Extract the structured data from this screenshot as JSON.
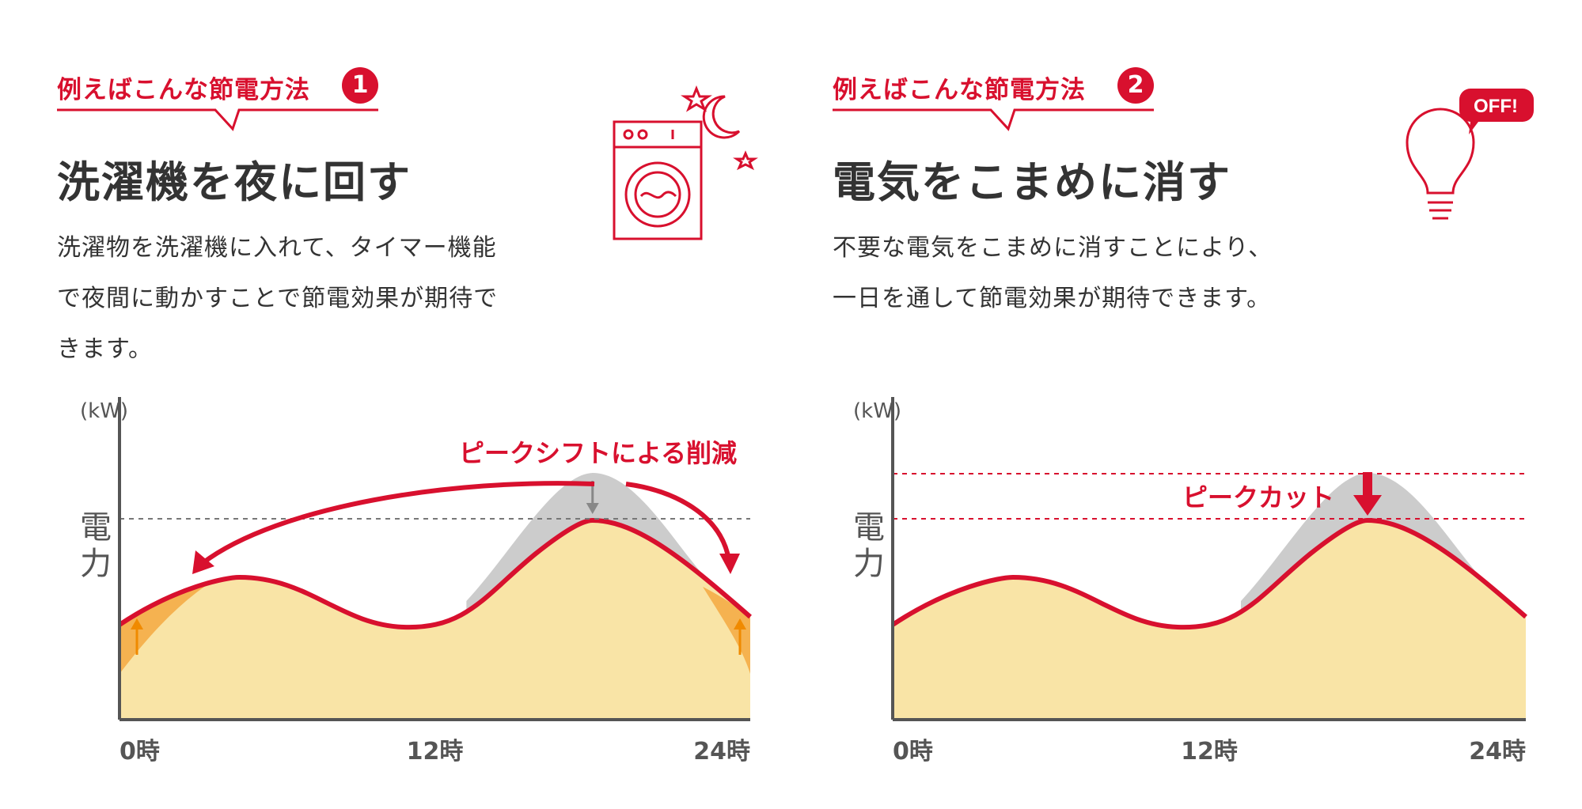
{
  "colors": {
    "accent": "#d8102e",
    "fill": "#f9e4a6",
    "shifted": "#f5b250",
    "grey": "#cccccc",
    "orange_arrow": "#f08a00",
    "text": "#333333"
  },
  "panels": [
    {
      "tag_label": "例えばこんな節電方法",
      "tag_number": "1",
      "heading": "洗濯機を夜に回す",
      "description_lines": [
        "洗濯物を洗濯機に入れて、タイマー機能",
        "で夜間に動かすことで節電効果が期待で",
        "きます。"
      ],
      "icon": "washing-machine-night-icon"
    },
    {
      "tag_label": "例えばこんな節電方法",
      "tag_number": "2",
      "heading": "電気をこまめに消す",
      "description_lines": [
        "不要な電気をこまめに消すことにより、",
        "一日を通して節電効果が期待できます。"
      ],
      "icon": "light-bulb-off-icon",
      "icon_badge": "OFF!"
    }
  ],
  "chart_data": [
    {
      "type": "area",
      "unit_label": "(kW)",
      "ylabel": "電力",
      "x_ticks": [
        "0時",
        "12時",
        "24時"
      ],
      "annotation": "ピークシフトによる削減",
      "reference_lines": [
        "peak-after-shift"
      ]
    },
    {
      "type": "area",
      "unit_label": "(kW)",
      "ylabel": "電力",
      "x_ticks": [
        "0時",
        "12時",
        "24時"
      ],
      "annotation": "ピークカット",
      "reference_lines": [
        "original-peak",
        "reduced-peak"
      ]
    }
  ]
}
